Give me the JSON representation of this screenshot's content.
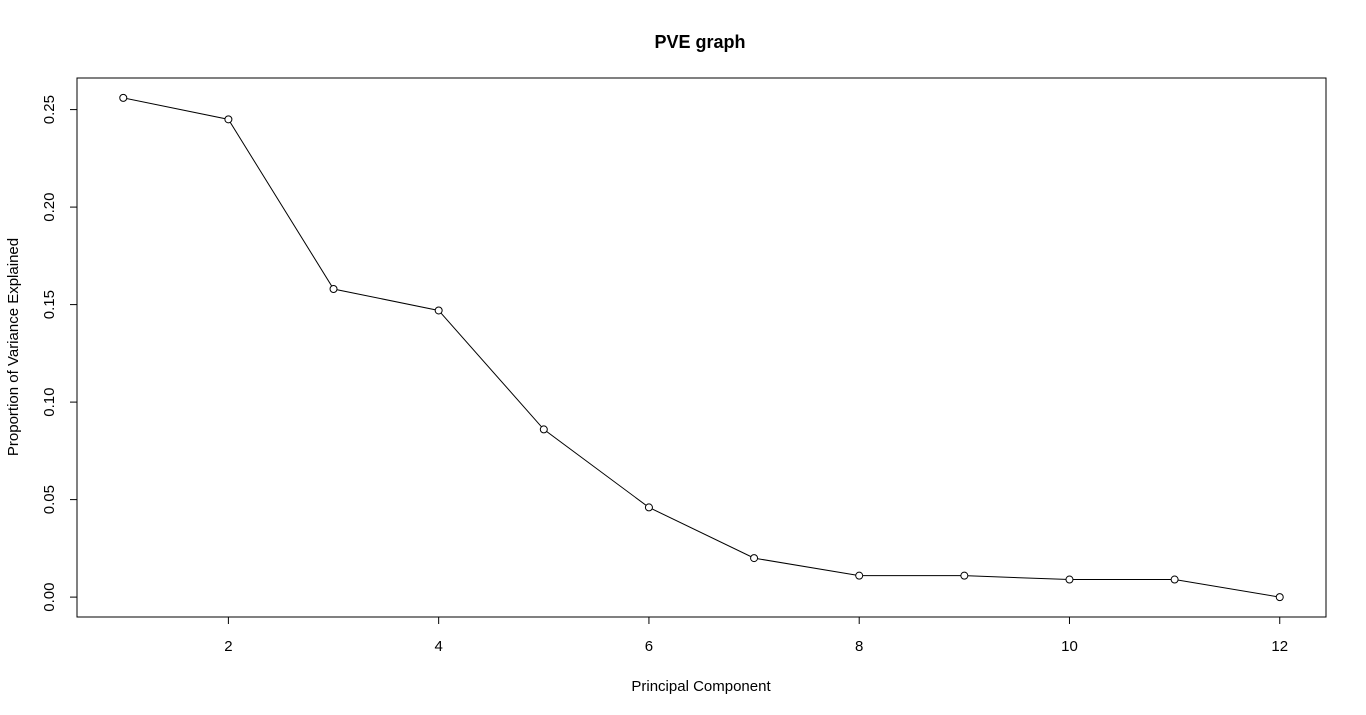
{
  "chart_data": {
    "type": "line",
    "title": "PVE graph",
    "xlabel": "Principal Component",
    "ylabel": "Proportion of Variance Explained",
    "x": [
      1,
      2,
      3,
      4,
      5,
      6,
      7,
      8,
      9,
      10,
      11,
      12
    ],
    "values": [
      0.256,
      0.245,
      0.158,
      0.147,
      0.086,
      0.046,
      0.02,
      0.011,
      0.011,
      0.009,
      0.009,
      0.0
    ],
    "x_ticks": [
      "2",
      "4",
      "6",
      "8",
      "10",
      "12"
    ],
    "y_ticks": [
      "0.00",
      "0.05",
      "0.10",
      "0.15",
      "0.20",
      "0.25"
    ],
    "xlim": [
      0.56,
      12.44
    ],
    "ylim": [
      -0.0102,
      0.2662
    ],
    "grid": false,
    "markers": "open-circle"
  }
}
